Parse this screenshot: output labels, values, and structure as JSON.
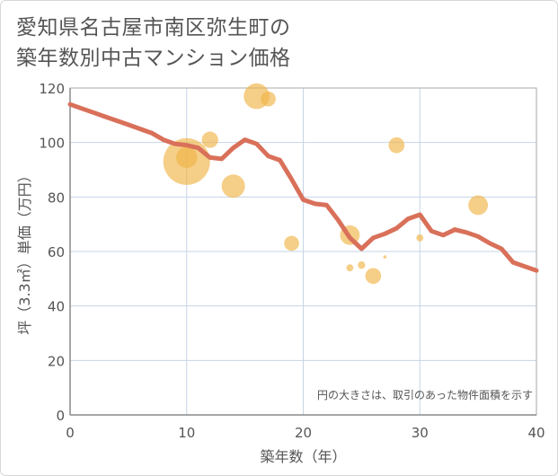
{
  "title_lines": [
    "愛知県名古屋市南区弥生町の",
    "築年数別中古マンション価格"
  ],
  "chart_data": {
    "type": "scatter",
    "xlabel": "築年数（年）",
    "ylabel": "坪（3.3㎡）単価（万円）",
    "xlim": [
      0,
      40
    ],
    "ylim": [
      0,
      120
    ],
    "xticks": [
      0,
      10,
      20,
      30,
      40
    ],
    "yticks": [
      0,
      20,
      40,
      60,
      80,
      100,
      120
    ],
    "grid": true,
    "note": "円の大きさは、取引のあった物件面積を示す",
    "colors": {
      "bubble": "#f0b347",
      "line": "#d9705a",
      "grid": "#c6d6e6",
      "text": "#555555"
    },
    "bubbles": [
      {
        "x": 10,
        "y": 93,
        "size": 1.0
      },
      {
        "x": 10,
        "y": 94.5,
        "size": 0.45
      },
      {
        "x": 12,
        "y": 101,
        "size": 0.35
      },
      {
        "x": 14,
        "y": 84,
        "size": 0.5
      },
      {
        "x": 16,
        "y": 117,
        "size": 0.55
      },
      {
        "x": 17,
        "y": 116,
        "size": 0.32
      },
      {
        "x": 19,
        "y": 63,
        "size": 0.32
      },
      {
        "x": 24,
        "y": 66,
        "size": 0.42
      },
      {
        "x": 24,
        "y": 54,
        "size": 0.15
      },
      {
        "x": 25,
        "y": 55,
        "size": 0.16
      },
      {
        "x": 26,
        "y": 51,
        "size": 0.34
      },
      {
        "x": 27,
        "y": 58,
        "size": 0.07
      },
      {
        "x": 28,
        "y": 99,
        "size": 0.34
      },
      {
        "x": 30,
        "y": 65,
        "size": 0.15
      },
      {
        "x": 33,
        "y": 68,
        "size": 0.12
      },
      {
        "x": 35,
        "y": 77,
        "size": 0.42
      }
    ],
    "trend": {
      "x": [
        0,
        1,
        2,
        3,
        4,
        5,
        6,
        7,
        8,
        9,
        10,
        11,
        12,
        13,
        14,
        15,
        16,
        17,
        18,
        19,
        20,
        21,
        22,
        23,
        24,
        25,
        26,
        27,
        28,
        29,
        30,
        31,
        32,
        33,
        34,
        35,
        36,
        37,
        38,
        39,
        40
      ],
      "y": [
        114,
        112.5,
        111,
        109.5,
        108,
        106.5,
        105,
        103.5,
        101,
        99.5,
        99,
        98,
        94.5,
        94,
        98,
        101,
        99.5,
        95,
        93.5,
        86.5,
        79,
        77.5,
        77,
        71.5,
        65,
        61,
        65,
        66.5,
        68.5,
        72,
        73.5,
        67.5,
        66,
        68,
        67,
        65.5,
        63,
        61,
        56,
        54.5,
        53
      ]
    }
  }
}
